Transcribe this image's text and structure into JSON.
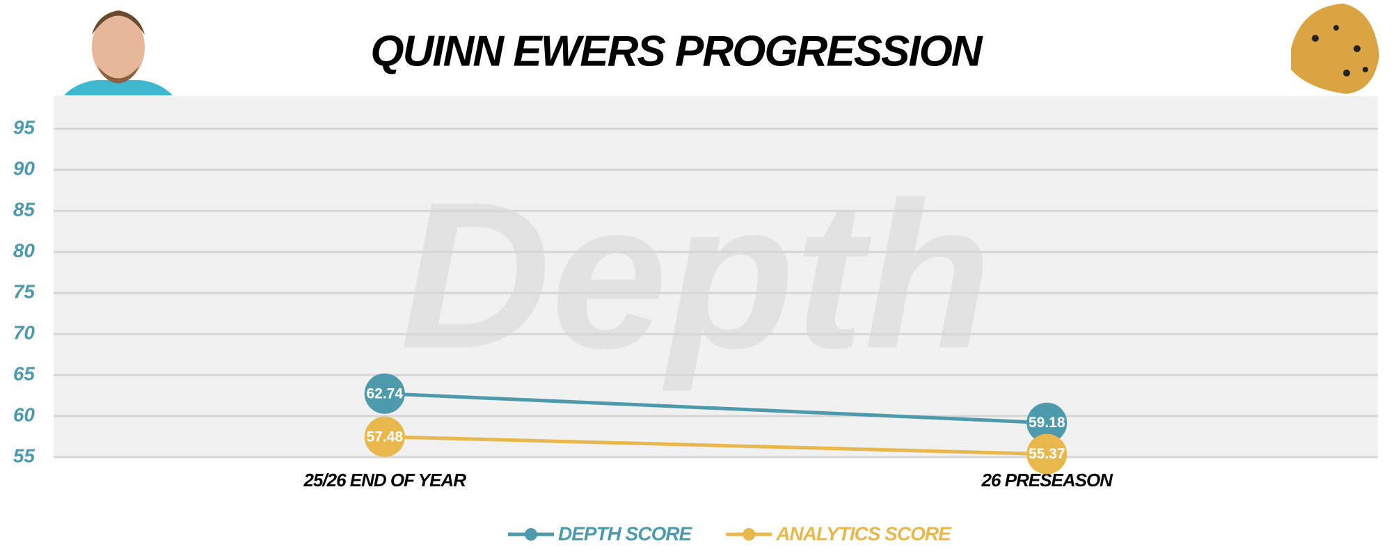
{
  "chart_data": {
    "type": "line",
    "title": "QUINN EWERS PROGRESSION",
    "watermark": "Depth",
    "categories": [
      "25/26 END OF YEAR",
      "26 PRESEASON"
    ],
    "series": [
      {
        "name": "DEPTH SCORE",
        "color": "#4d9aad",
        "values": [
          62.74,
          59.18
        ]
      },
      {
        "name": "ANALYTICS SCORE",
        "color": "#e8b84d",
        "values": [
          57.48,
          55.37
        ]
      }
    ],
    "ylim": [
      55,
      99
    ],
    "yticks": [
      55,
      60,
      65,
      70,
      75,
      80,
      85,
      90,
      95
    ],
    "grid": true
  }
}
